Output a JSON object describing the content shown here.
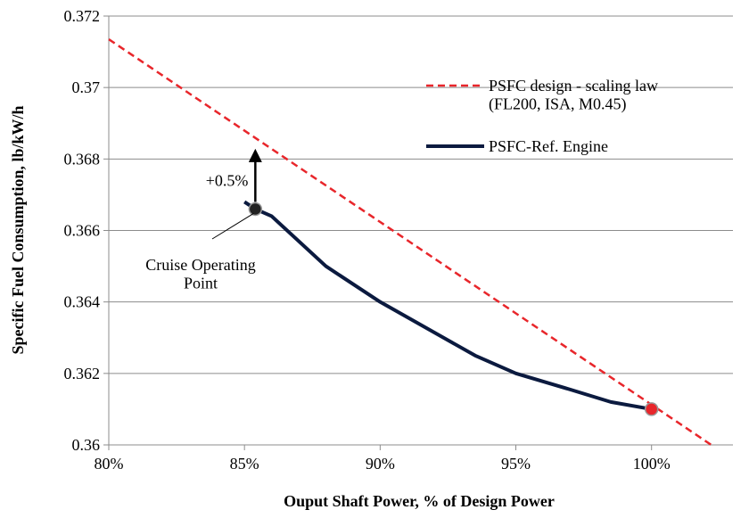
{
  "chart_data": {
    "type": "line",
    "x_label": "Ouput Shaft Power, % of Design Power",
    "y_label": "Specific Fuel Consumption, lb/kW/h",
    "xlim": [
      80,
      103
    ],
    "ylim": [
      0.36,
      0.372
    ],
    "xticks": [
      {
        "value": 80,
        "label": "80%"
      },
      {
        "value": 85,
        "label": "85%"
      },
      {
        "value": 90,
        "label": "90%"
      },
      {
        "value": 95,
        "label": "95%"
      },
      {
        "value": 100,
        "label": "100%"
      }
    ],
    "yticks": [
      0.36,
      0.362,
      0.364,
      0.366,
      0.368,
      0.37,
      0.372
    ],
    "grid": true,
    "legend": "upper right",
    "series": [
      {
        "name": "PSFC design - scaling law\n(FL200, ISA, M0.45)",
        "color": "#e8262b",
        "dashed": true,
        "x": [
          80,
          102.2
        ],
        "values": [
          0.37135,
          0.36
        ]
      },
      {
        "name": "PSFC-Ref. Engine",
        "color": "#0b1a3f",
        "dashed": false,
        "x": [
          85,
          85.4,
          86,
          88,
          90,
          93.5,
          95,
          97,
          98.5,
          100
        ],
        "values": [
          0.3668,
          0.3666,
          0.3664,
          0.365,
          0.364,
          0.3625,
          0.362,
          0.36155,
          0.3612,
          0.361
        ]
      }
    ],
    "points": [
      {
        "x": 85.4,
        "y": 0.3666,
        "color": "#222222"
      },
      {
        "x": 100,
        "y": 0.361,
        "color": "#e8262b"
      }
    ],
    "arrow": {
      "x": 85.4,
      "from": 0.3666,
      "to": 0.3682,
      "label": "+0.5%"
    },
    "annotation": {
      "text": "Cruise Operating\nPoint",
      "x": 85.4,
      "y": 0.3666
    }
  }
}
